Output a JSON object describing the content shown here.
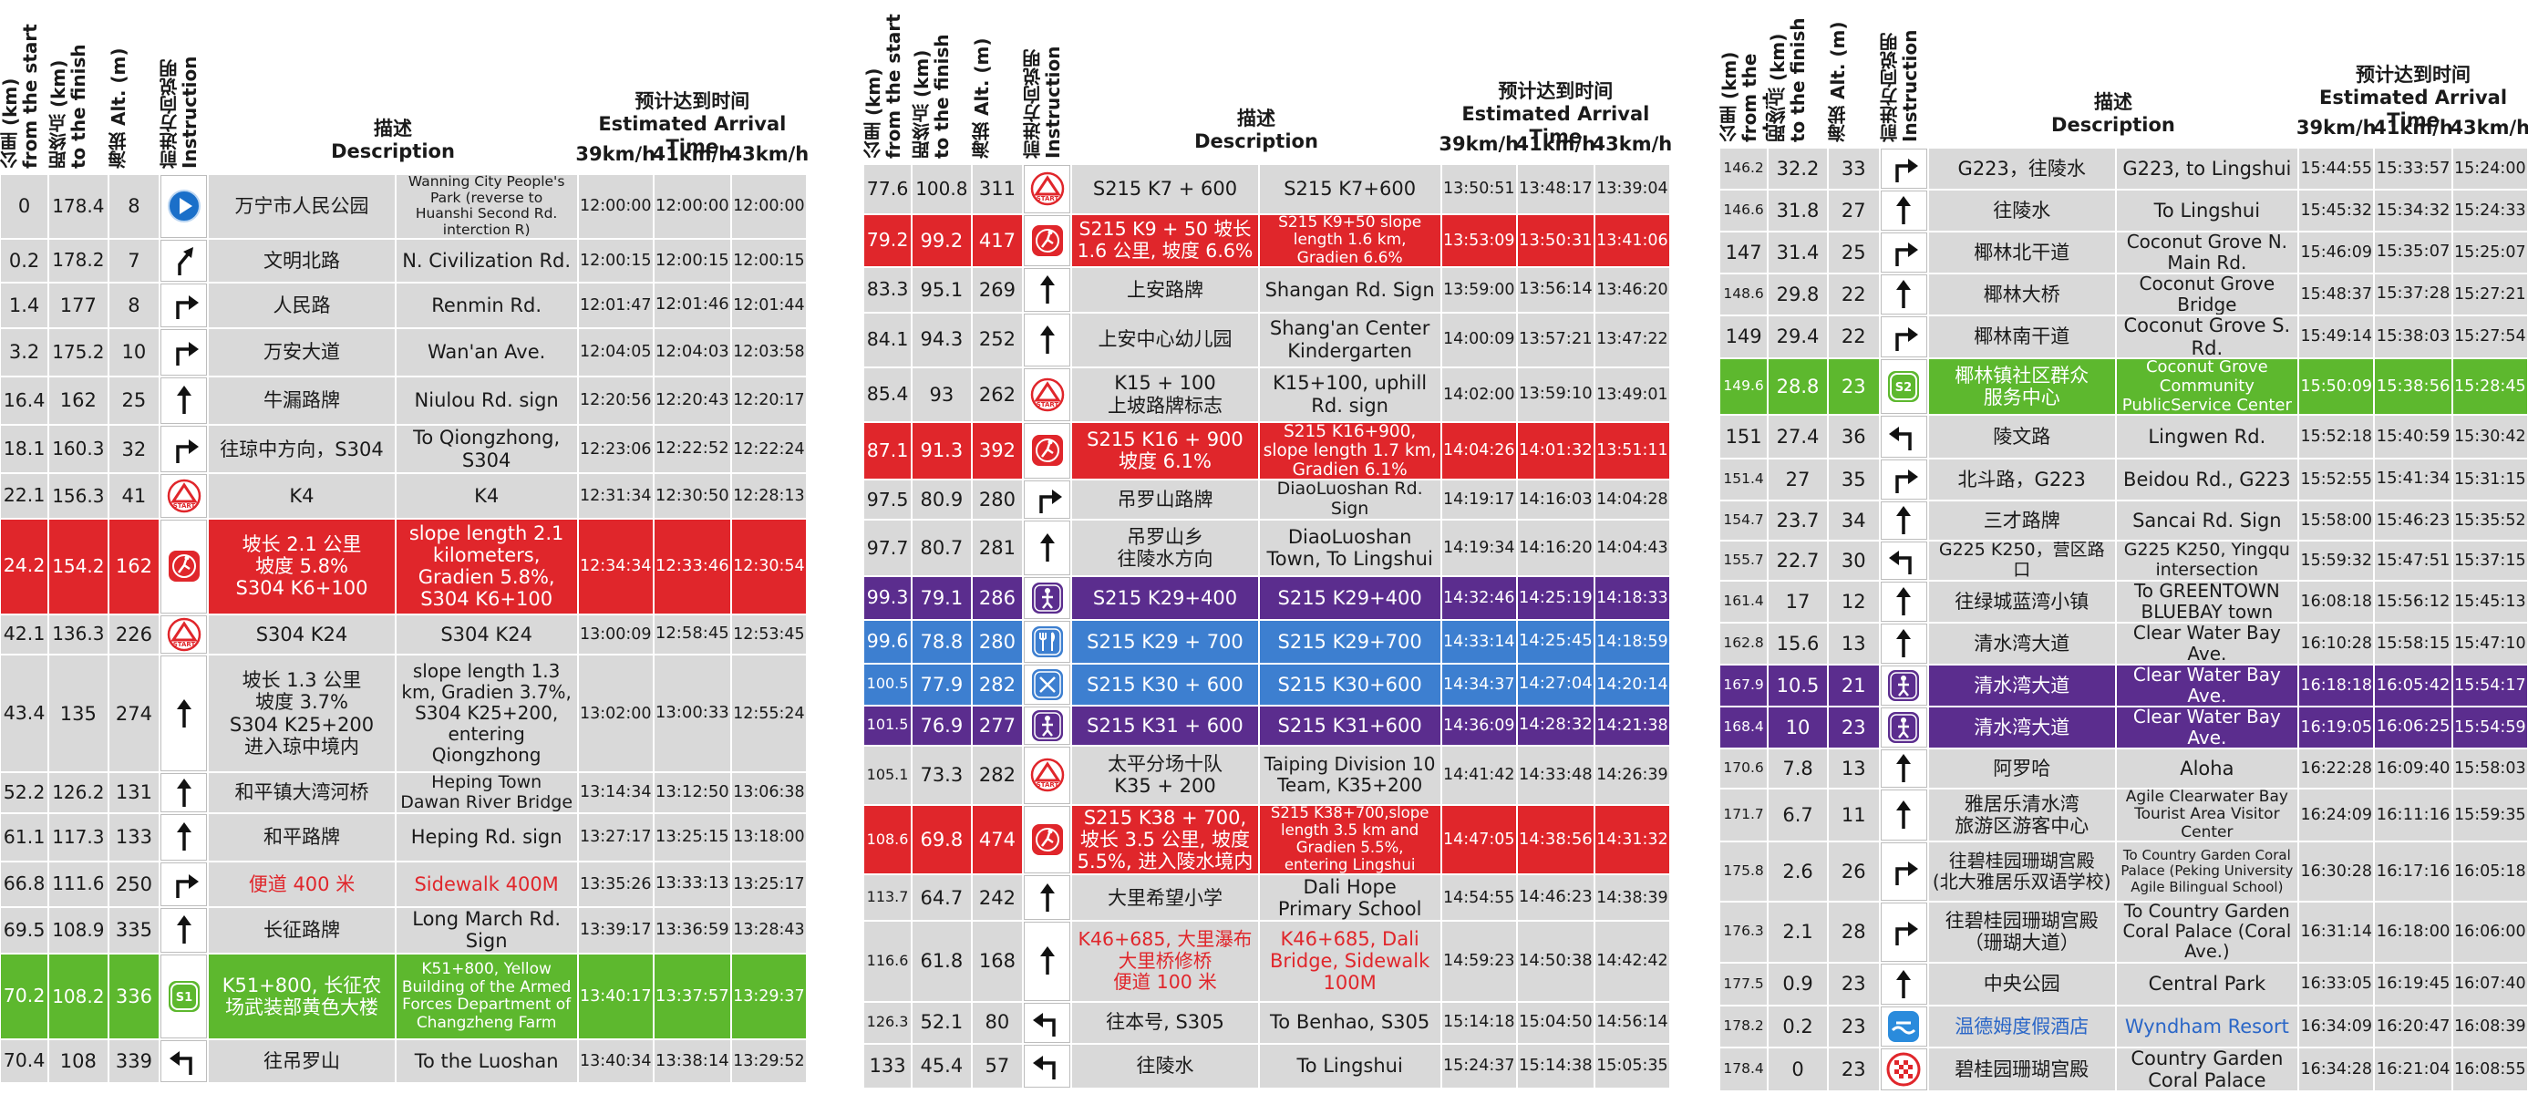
{
  "tables": [
    {
      "header": {
        "from_start": "公里 (km)\nfrom the start",
        "to_finish": "距终点 (km)\nto the finish",
        "alt": "海拔 Alt. (m)",
        "instruction": "前进方向说明\nInstruction",
        "description": "描述\nDescription",
        "eta": "预计达到时间\nEstimated Arrival Time",
        "speeds": [
          "39km/h",
          "41km/h",
          "43km/h"
        ]
      },
      "rows": [
        {
          "from_start": "0",
          "to_finish": "178.4",
          "alt": "8",
          "cn": "万宁市人民公园",
          "en": "Wanning City People's Park (reverse to Huanshi Second Rd. interction R)",
          "times": [
            "12:00:00",
            "12:00:00",
            "12:00:00"
          ]
        },
        {
          "from_start": "0.2",
          "to_finish": "178.2",
          "alt": "7",
          "cn": "文明北路",
          "en": "N. Civilization Rd.",
          "times": [
            "12:00:15",
            "12:00:15",
            "12:00:15"
          ]
        },
        {
          "from_start": "1.4",
          "to_finish": "177",
          "alt": "8",
          "cn": "人民路",
          "en": "Renmin Rd.",
          "times": [
            "12:01:47",
            "12:01:46",
            "12:01:44"
          ]
        },
        {
          "from_start": "3.2",
          "to_finish": "175.2",
          "alt": "10",
          "cn": "万安大道",
          "en": "Wan'an Ave.",
          "times": [
            "12:04:05",
            "12:04:03",
            "12:03:58"
          ]
        },
        {
          "from_start": "16.4",
          "to_finish": "162",
          "alt": "25",
          "cn": "牛漏路牌",
          "en": "Niulou Rd. sign",
          "times": [
            "12:20:56",
            "12:20:43",
            "12:20:17"
          ]
        },
        {
          "from_start": "18.1",
          "to_finish": "160.3",
          "alt": "32",
          "cn": "往琼中方向，S304",
          "en": "To Qiongzhong, S304",
          "times": [
            "12:23:06",
            "12:22:52",
            "12:22:24"
          ]
        },
        {
          "from_start": "22.1",
          "to_finish": "156.3",
          "alt": "41",
          "cn": "K4",
          "en": "K4",
          "times": [
            "12:31:34",
            "12:30:50",
            "12:28:13"
          ],
          "icon_text": "START"
        },
        {
          "from_start": "24.2",
          "to_finish": "154.2",
          "alt": "162",
          "cn": "坡长 2.1 公里\n坡度 5.8%\nS304 K6+100",
          "en": "slope length 2.1 kilometers, Gradien 5.8%, S304 K6+100",
          "times": [
            "12:34:34",
            "12:33:46",
            "12:30:54"
          ]
        },
        {
          "from_start": "42.1",
          "to_finish": "136.3",
          "alt": "226",
          "cn": "S304 K24",
          "en": "S304 K24",
          "times": [
            "13:00:09",
            "12:58:45",
            "12:53:45"
          ],
          "icon_text": "START"
        },
        {
          "from_start": "43.4",
          "to_finish": "135",
          "alt": "274",
          "cn": "坡长 1.3 公里\n坡度 3.7%\nS304 K25+200\n进入琼中境内",
          "en": "slope length 1.3 km, Gradien 3.7%, S304 K25+200, entering Qiongzhong",
          "times": [
            "13:02:00",
            "13:00:33",
            "12:55:24"
          ]
        },
        {
          "from_start": "52.2",
          "to_finish": "126.2",
          "alt": "131",
          "cn": "和平镇大湾河桥",
          "en": "Heping Town Dawan River Bridge",
          "times": [
            "13:14:34",
            "13:12:50",
            "13:06:38"
          ]
        },
        {
          "from_start": "61.1",
          "to_finish": "117.3",
          "alt": "133",
          "cn": "和平路牌",
          "en": "Heping Rd. sign",
          "times": [
            "13:27:17",
            "13:25:15",
            "13:18:00"
          ]
        },
        {
          "from_start": "66.8",
          "to_finish": "111.6",
          "alt": "250",
          "cn": "便道 400 米",
          "en": "Sidewalk 400M",
          "times": [
            "13:35:26",
            "13:33:13",
            "13:25:17"
          ]
        },
        {
          "from_start": "69.5",
          "to_finish": "108.9",
          "alt": "335",
          "cn": "长征路牌",
          "en": "Long March Rd. Sign",
          "times": [
            "13:39:17",
            "13:36:59",
            "13:28:43"
          ]
        },
        {
          "from_start": "70.2",
          "to_finish": "108.2",
          "alt": "336",
          "cn": "K51+800, 长征农场武装部黄色大楼",
          "en": "K51+800, Yellow Building of the Armed Forces Department of Changzheng Farm",
          "times": [
            "13:40:17",
            "13:37:57",
            "13:29:37"
          ],
          "icon_text": "S1"
        },
        {
          "from_start": "70.4",
          "to_finish": "108",
          "alt": "339",
          "cn": "往吊罗山",
          "en": "To the Luoshan",
          "times": [
            "13:40:34",
            "13:38:14",
            "13:29:52"
          ]
        }
      ]
    },
    {
      "header": {
        "from_start": "公里 (km)\nfrom the start",
        "to_finish": "距终点 (km)\nto the finish",
        "alt": "海拔 Alt. (m)",
        "instruction": "前进方向说明\nInstruction",
        "description": "描述\nDescription",
        "eta": "预计达到时间\nEstimated Arrival Time",
        "speeds": [
          "39km/h",
          "41km/h",
          "43km/h"
        ]
      },
      "rows": [
        {
          "from_start": "77.6",
          "to_finish": "100.8",
          "alt": "311",
          "cn": "S215 K7 + 600",
          "en": "S215 K7+600",
          "times": [
            "13:50:51",
            "13:48:17",
            "13:39:04"
          ],
          "icon_text": "START"
        },
        {
          "from_start": "79.2",
          "to_finish": "99.2",
          "alt": "417",
          "cn": "S215 K9 + 50 坡长 1.6 公里, 坡度 6.6%",
          "en": "S215 K9+50 slope length 1.6 km, Gradien 6.6%",
          "times": [
            "13:53:09",
            "13:50:31",
            "13:41:06"
          ]
        },
        {
          "from_start": "83.3",
          "to_finish": "95.1",
          "alt": "269",
          "cn": "上安路牌",
          "en": "Shangan Rd. Sign",
          "times": [
            "13:59:00",
            "13:56:14",
            "13:46:20"
          ]
        },
        {
          "from_start": "84.1",
          "to_finish": "94.3",
          "alt": "252",
          "cn": "上安中心幼儿园",
          "en": "Shang'an Center Kindergarten",
          "times": [
            "14:00:09",
            "13:57:21",
            "13:47:22"
          ]
        },
        {
          "from_start": "85.4",
          "to_finish": "93",
          "alt": "262",
          "cn": "K15 + 100\n上坡路牌标志",
          "en": "K15+100, uphill Rd. sign",
          "times": [
            "14:02:00",
            "13:59:10",
            "13:49:01"
          ],
          "icon_text": "START"
        },
        {
          "from_start": "87.1",
          "to_finish": "91.3",
          "alt": "392",
          "cn": "S215 K16 + 900\n坡度 6.1%",
          "en": "S215 K16+900, slope length 1.7 km, Gradien 6.1%",
          "times": [
            "14:04:26",
            "14:01:32",
            "13:51:11"
          ]
        },
        {
          "from_start": "97.5",
          "to_finish": "80.9",
          "alt": "280",
          "cn": "吊罗山路牌",
          "en": "DiaoLuoshan Rd. Sign",
          "times": [
            "14:19:17",
            "14:16:03",
            "14:04:28"
          ]
        },
        {
          "from_start": "97.7",
          "to_finish": "80.7",
          "alt": "281",
          "cn": "吊罗山乡\n往陵水方向",
          "en": "DiaoLuoshan Town, To Lingshui",
          "times": [
            "14:19:34",
            "14:16:20",
            "14:04:43"
          ]
        },
        {
          "from_start": "99.3",
          "to_finish": "79.1",
          "alt": "286",
          "cn": "S215 K29+400",
          "en": "S215 K29+400",
          "times": [
            "14:32:46",
            "14:25:19",
            "14:18:33"
          ]
        },
        {
          "from_start": "99.6",
          "to_finish": "78.8",
          "alt": "280",
          "cn": "S215 K29 + 700",
          "en": "S215 K29+700",
          "times": [
            "14:33:14",
            "14:25:45",
            "14:18:59"
          ]
        },
        {
          "from_start": "100.5",
          "to_finish": "77.9",
          "alt": "282",
          "cn": "S215 K30 + 600",
          "en": "S215 K30+600",
          "times": [
            "14:34:37",
            "14:27:04",
            "14:20:14"
          ]
        },
        {
          "from_start": "101.5",
          "to_finish": "76.9",
          "alt": "277",
          "cn": "S215 K31 + 600",
          "en": "S215 K31+600",
          "times": [
            "14:36:09",
            "14:28:32",
            "14:21:38"
          ]
        },
        {
          "from_start": "105.1",
          "to_finish": "73.3",
          "alt": "282",
          "cn": "太平分场十队\nK35 + 200",
          "en": "Taiping Division 10 Team, K35+200",
          "times": [
            "14:41:42",
            "14:33:48",
            "14:26:39"
          ],
          "icon_text": "START"
        },
        {
          "from_start": "108.6",
          "to_finish": "69.8",
          "alt": "474",
          "cn": "S215 K38 + 700, 坡长 3.5 公里, 坡度 5.5%, 进入陵水境内",
          "en": "S215 K38+700,slope length 3.5 km and Gradien 5.5%, entering Lingshui",
          "times": [
            "14:47:05",
            "14:38:56",
            "14:31:32"
          ]
        },
        {
          "from_start": "113.7",
          "to_finish": "64.7",
          "alt": "242",
          "cn": "大里希望小学",
          "en": "Dali Hope Primary School",
          "times": [
            "14:54:55",
            "14:46:23",
            "14:38:39"
          ]
        },
        {
          "from_start": "116.6",
          "to_finish": "61.8",
          "alt": "168",
          "cn": "K46+685, 大里瀑布\n大里桥修桥\n便道 100 米",
          "en": "K46+685, Dali Bridge, Sidewalk 100M",
          "times": [
            "14:59:23",
            "14:50:38",
            "14:42:42"
          ]
        },
        {
          "from_start": "126.3",
          "to_finish": "52.1",
          "alt": "80",
          "cn": "往本号, S305",
          "en": "To Benhao, S305",
          "times": [
            "15:14:18",
            "15:04:50",
            "14:56:14"
          ]
        },
        {
          "from_start": "133",
          "to_finish": "45.4",
          "alt": "57",
          "cn": "往陵水",
          "en": "To Lingshui",
          "times": [
            "15:24:37",
            "15:14:38",
            "15:05:35"
          ]
        }
      ]
    },
    {
      "header": {
        "from_start": "公里 (km)\nfrom the start",
        "to_finish": "距终点 (km)\nto the finish",
        "alt": "海拔 Alt. (m)",
        "instruction": "前进方向说明\nInstruction",
        "description": "描述\nDescription",
        "eta": "预计达到时间\nEstimated Arrival Time",
        "speeds": [
          "39km/h",
          "41km/h",
          "43km/h"
        ]
      },
      "rows": [
        {
          "from_start": "146.2",
          "to_finish": "32.2",
          "alt": "33",
          "cn": "G223，往陵水",
          "en": "G223, to Lingshui",
          "times": [
            "15:44:55",
            "15:33:57",
            "15:24:00"
          ]
        },
        {
          "from_start": "146.6",
          "to_finish": "31.8",
          "alt": "27",
          "cn": "往陵水",
          "en": "To Lingshui",
          "times": [
            "15:45:32",
            "15:34:32",
            "15:24:33"
          ]
        },
        {
          "from_start": "147",
          "to_finish": "31.4",
          "alt": "25",
          "cn": "椰林北干道",
          "en": "Coconut Grove N. Main Rd.",
          "times": [
            "15:46:09",
            "15:35:07",
            "15:25:07"
          ]
        },
        {
          "from_start": "148.6",
          "to_finish": "29.8",
          "alt": "22",
          "cn": "椰林大桥",
          "en": "Coconut Grove Bridge",
          "times": [
            "15:48:37",
            "15:37:28",
            "15:27:21"
          ]
        },
        {
          "from_start": "149",
          "to_finish": "29.4",
          "alt": "22",
          "cn": "椰林南干道",
          "en": "Coconut Grove S. Rd.",
          "times": [
            "15:49:14",
            "15:38:03",
            "15:27:54"
          ]
        },
        {
          "from_start": "149.6",
          "to_finish": "28.8",
          "alt": "23",
          "cn": "椰林镇社区群众\n服务中心",
          "en": "Coconut Grove Community PublicService Center",
          "times": [
            "15:50:09",
            "15:38:56",
            "15:28:45"
          ],
          "icon_text": "S2"
        },
        {
          "from_start": "151",
          "to_finish": "27.4",
          "alt": "36",
          "cn": "陵文路",
          "en": "Lingwen Rd.",
          "times": [
            "15:52:18",
            "15:40:59",
            "15:30:42"
          ]
        },
        {
          "from_start": "151.4",
          "to_finish": "27",
          "alt": "35",
          "cn": "北斗路，G223",
          "en": "Beidou Rd., G223",
          "times": [
            "15:52:55",
            "15:41:34",
            "15:31:15"
          ]
        },
        {
          "from_start": "154.7",
          "to_finish": "23.7",
          "alt": "34",
          "cn": "三才路牌",
          "en": "Sancai Rd. Sign",
          "times": [
            "15:58:00",
            "15:46:23",
            "15:35:52"
          ]
        },
        {
          "from_start": "155.7",
          "to_finish": "22.7",
          "alt": "30",
          "cn": "G225 K250，营区路口",
          "en": "G225 K250, Yingqu intersection",
          "times": [
            "15:59:32",
            "15:47:51",
            "15:37:15"
          ]
        },
        {
          "from_start": "161.4",
          "to_finish": "17",
          "alt": "12",
          "cn": "往绿城蓝湾小镇",
          "en": "To GREENTOWN BLUEBAY town",
          "times": [
            "16:08:18",
            "15:56:12",
            "15:45:13"
          ]
        },
        {
          "from_start": "162.8",
          "to_finish": "15.6",
          "alt": "13",
          "cn": "清水湾大道",
          "en": "Clear Water Bay Ave.",
          "times": [
            "16:10:28",
            "15:58:15",
            "15:47:10"
          ]
        },
        {
          "from_start": "167.9",
          "to_finish": "10.5",
          "alt": "21",
          "cn": "清水湾大道",
          "en": "Clear Water Bay Ave.",
          "times": [
            "16:18:18",
            "16:05:42",
            "15:54:17"
          ]
        },
        {
          "from_start": "168.4",
          "to_finish": "10",
          "alt": "23",
          "cn": "清水湾大道",
          "en": "Clear Water Bay Ave.",
          "times": [
            "16:19:05",
            "16:06:25",
            "15:54:59"
          ]
        },
        {
          "from_start": "170.6",
          "to_finish": "7.8",
          "alt": "13",
          "cn": "阿罗哈",
          "en": "Aloha",
          "times": [
            "16:22:28",
            "16:09:40",
            "15:58:03"
          ]
        },
        {
          "from_start": "171.7",
          "to_finish": "6.7",
          "alt": "11",
          "cn": "雅居乐清水湾\n旅游区游客中心",
          "en": "Agile Clearwater Bay Tourist Area Visitor Center",
          "times": [
            "16:24:09",
            "16:11:16",
            "15:59:35"
          ]
        },
        {
          "from_start": "175.8",
          "to_finish": "2.6",
          "alt": "26",
          "cn": "往碧桂园珊瑚宫殿\n(北大雅居乐双语学校)",
          "en": "To Country Garden Coral Palace (Peking University Agile Bilingual School)",
          "times": [
            "16:30:28",
            "16:17:16",
            "16:05:18"
          ]
        },
        {
          "from_start": "176.3",
          "to_finish": "2.1",
          "alt": "28",
          "cn": "往碧桂园珊瑚宫殿\n（珊瑚大道）",
          "en": "To Country Garden Coral Palace (Coral Ave.)",
          "times": [
            "16:31:14",
            "16:18:00",
            "16:06:00"
          ]
        },
        {
          "from_start": "177.5",
          "to_finish": "0.9",
          "alt": "23",
          "cn": "中央公园",
          "en": "Central Park",
          "times": [
            "16:33:05",
            "16:19:45",
            "16:07:40"
          ]
        },
        {
          "from_start": "178.2",
          "to_finish": "0.2",
          "alt": "23",
          "cn": "温德姆度假酒店",
          "en": "Wyndham Resort",
          "times": [
            "16:34:09",
            "16:20:47",
            "16:08:39"
          ]
        },
        {
          "from_start": "178.4",
          "to_finish": "0",
          "alt": "23",
          "cn": "碧桂园珊瑚宫殿",
          "en": "Country Garden Coral Palace",
          "times": [
            "16:34:28",
            "16:21:04",
            "16:08:55"
          ]
        }
      ]
    }
  ]
}
